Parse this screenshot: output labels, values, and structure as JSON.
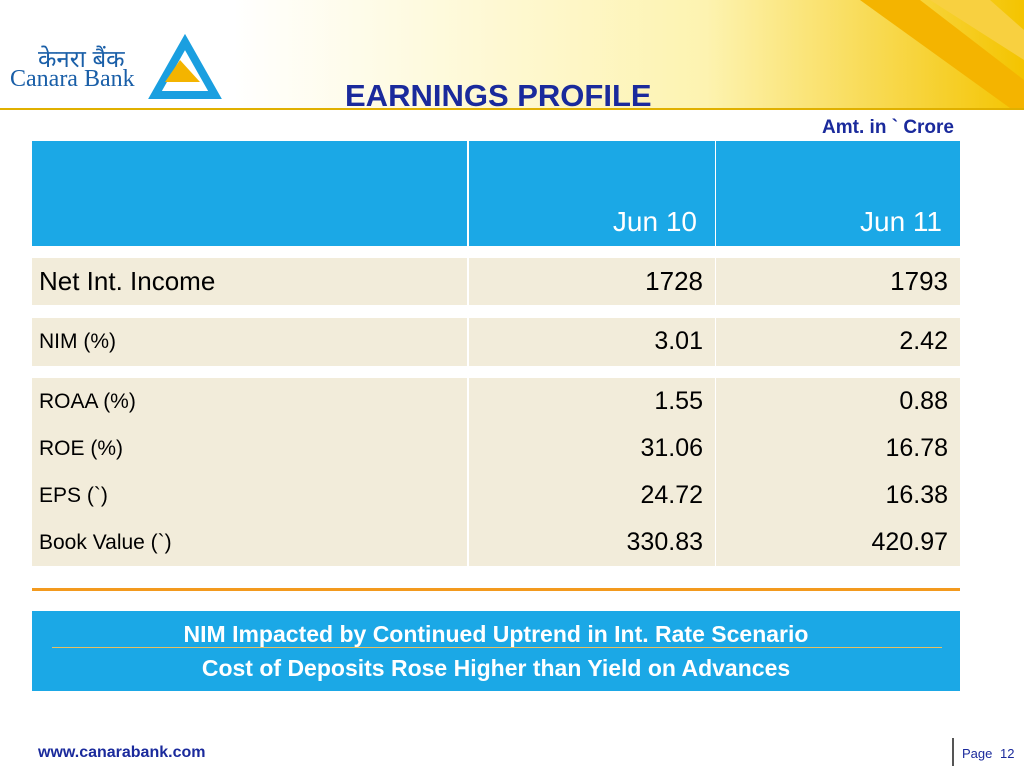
{
  "header": {
    "logo_hindi": "केनरा बैंक",
    "logo_english": "Canara Bank",
    "title": "EARNINGS PROFILE",
    "unit": "Amt. in ` Crore"
  },
  "table": {
    "columns": [
      "Jun 10",
      "Jun 11"
    ],
    "groups": [
      [
        [
          "Net Int. Income",
          "1728",
          "1793"
        ]
      ],
      [
        [
          "NIM (%)",
          "3.01",
          "2.42"
        ]
      ],
      [
        [
          "ROAA (%)",
          "1.55",
          "0.88"
        ],
        [
          "ROE (%)",
          "31.06",
          "16.78"
        ],
        [
          "EPS (`)",
          "24.72",
          "16.38"
        ],
        [
          "Book Value (`)",
          "330.83",
          "420.97"
        ]
      ]
    ]
  },
  "notes": [
    "NIM Impacted by Continued Uptrend in Int. Rate Scenario",
    "Cost of Deposits Rose Higher than Yield on Advances"
  ],
  "footer": {
    "website": "www.canarabank.com",
    "page_label": "Page",
    "page_number": "12"
  }
}
